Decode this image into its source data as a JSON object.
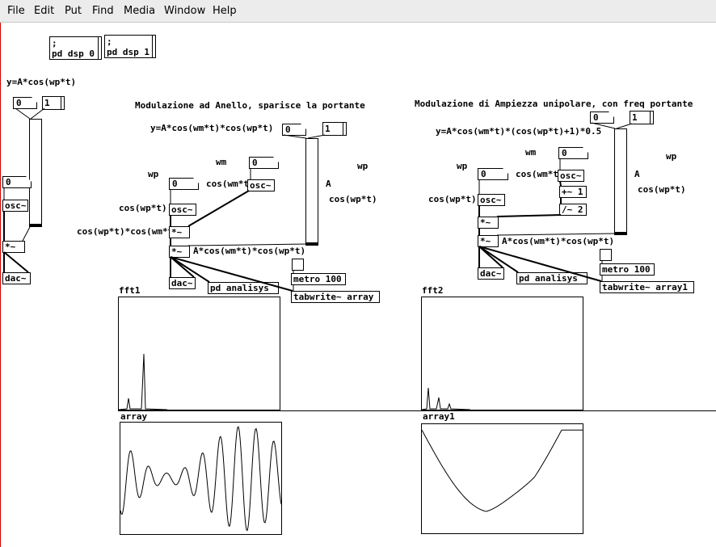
{
  "menu": [
    "File",
    "Edit",
    "Put",
    "Find",
    "Media",
    "Window",
    "Help"
  ],
  "dsp": {
    "msg_off": ";\npd dsp 0",
    "msg_on": ";\npd dsp 1"
  },
  "left": {
    "formula": "y=A*cos(wp*t)",
    "num_a": "0",
    "msg_a": "1",
    "num_b": "0",
    "osc": "osc~",
    "mul": "*~",
    "dac": "dac~"
  },
  "mid": {
    "title": "Modulazione ad Anello, sparisce la portante",
    "formula": "y=A*cos(wm*t)*cos(wp*t)",
    "num_a": "0",
    "msg_a": "1",
    "wm": "wm",
    "wp": "wp",
    "wp_right": "wp",
    "A": "A",
    "num_wm": "0",
    "osc_wm": "osc~",
    "cmt_coswm": "cos(wm*t)",
    "num_wp": "0",
    "osc_wp": "osc~",
    "cmt_coswp": "cos(wp*t)",
    "cmt_coswp_right": "cos(wp*t)",
    "cmt_product": "cos(wp*t)*cos(wm*t)",
    "mul1": "*~",
    "mul2": "*~",
    "cmt_result": "A*cos(wm*t)*cos(wp*t)",
    "dac": "dac~",
    "analisys": "pd analisys",
    "metro": "metro 100",
    "tabwrite": "tabwrite~ array",
    "fft_label": "fft1",
    "array_label": "array"
  },
  "right": {
    "title": "Modulazione di Ampiezza unipolare, con freq portante",
    "formula": "y=A*cos(wm*t)*(cos(wp*t)+1)*0.5",
    "num_a": "0",
    "msg_a": "1",
    "wm": "wm",
    "wp": "wp",
    "wp_right": "wp",
    "A": "A",
    "num_wm": "0",
    "osc_wm": "osc~",
    "cmt_coswm": "cos(wm*t)",
    "add": "+~ 1",
    "div": "/~ 2",
    "num_wp": "0",
    "osc_wp": "osc~",
    "cmt_coswp": "cos(wp*t)",
    "cmt_coswp_right": "cos(wp*t)",
    "mul1": "*~",
    "mul2": "*~",
    "cmt_result": "A*cos(wm*t)*cos(wp*t)",
    "dac": "dac~",
    "analisys": "pd analisys",
    "metro": "metro 100",
    "tabwrite": "tabwrite~ array1",
    "fft_label": "fft2",
    "array_label": "array1"
  },
  "colors": {
    "menubar": "#ececec",
    "canvas": "#ffffff",
    "ink": "#000000",
    "edge": "#d00000"
  },
  "icons": {
    "bang": "bang-icon",
    "slider": "vertical-slider-icon"
  }
}
